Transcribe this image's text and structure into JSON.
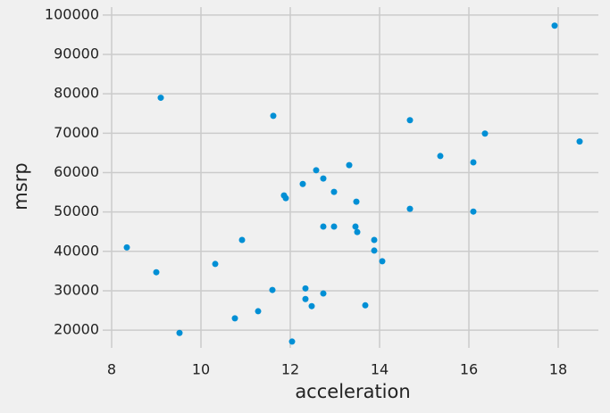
{
  "chart_data": {
    "type": "scatter",
    "x_label": "acceleration",
    "y_label": "msrp",
    "color": "#008fd5",
    "grid": true,
    "xlim": [
      7.8,
      18.9
    ],
    "ylim": [
      15500,
      102000
    ],
    "xticks": [
      8,
      10,
      12,
      14,
      16,
      18
    ],
    "yticks": [
      20000,
      30000,
      40000,
      50000,
      60000,
      70000,
      80000,
      90000,
      100000
    ],
    "x": [
      8.34,
      9.0,
      9.1,
      9.52,
      10.32,
      10.76,
      10.92,
      11.28,
      11.6,
      11.62,
      11.86,
      11.9,
      12.04,
      12.28,
      12.34,
      12.34,
      12.48,
      12.58,
      12.74,
      12.74,
      12.74,
      12.98,
      12.98,
      13.32,
      13.48,
      13.46,
      13.5,
      13.68,
      13.88,
      13.88,
      14.06,
      14.68,
      14.68,
      15.36,
      16.1,
      16.1,
      16.36,
      17.92,
      18.48
    ],
    "values": [
      41000,
      34700,
      79000,
      19300,
      36800,
      23000,
      42900,
      24800,
      30200,
      74400,
      54200,
      53500,
      17100,
      57100,
      30600,
      27900,
      26100,
      60600,
      58500,
      46300,
      29300,
      55100,
      46300,
      61900,
      52600,
      46300,
      44900,
      26300,
      42900,
      40200,
      37500,
      73300,
      50800,
      64200,
      62600,
      50100,
      69900,
      97300,
      67900
    ]
  }
}
